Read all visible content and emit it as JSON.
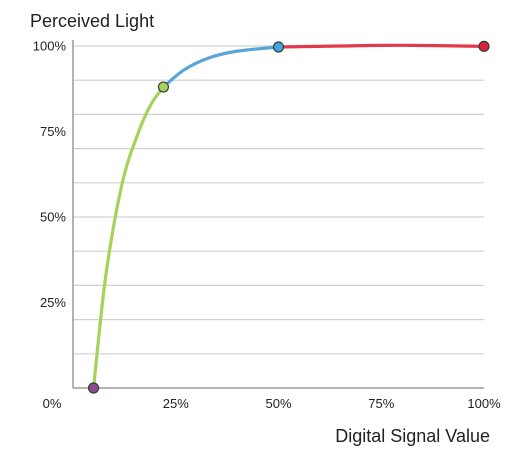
{
  "chart_data": {
    "type": "line",
    "title": "",
    "ylabel": "Perceived Light",
    "xlabel": "Digital Signal Value",
    "xlim": [
      0,
      100
    ],
    "ylim": [
      0,
      100
    ],
    "x_ticks": [
      0,
      25,
      50,
      75,
      100
    ],
    "x_tick_labels": [
      "0%",
      "25%",
      "50%",
      "75%",
      "100%"
    ],
    "y_ticks": [
      25,
      50,
      75,
      100
    ],
    "y_tick_labels": [
      "25%",
      "50%",
      "75%",
      "100%"
    ],
    "grid": true,
    "series": [
      {
        "color": "#a6d15a",
        "points": [
          [
            5,
            0
          ],
          [
            8,
            33
          ],
          [
            12,
            60
          ],
          [
            16,
            75
          ],
          [
            19,
            83
          ],
          [
            22,
            88
          ]
        ]
      },
      {
        "color": "#5aa5d8",
        "points": [
          [
            22,
            88
          ],
          [
            27,
            93
          ],
          [
            33,
            96.5
          ],
          [
            40,
            98.5
          ],
          [
            50,
            99.7
          ]
        ]
      },
      {
        "color": "#e23a4c",
        "points": [
          [
            50,
            99.7
          ],
          [
            65,
            100
          ],
          [
            80,
            100.2
          ],
          [
            100,
            99.9
          ]
        ]
      }
    ],
    "markers": [
      {
        "x": 5,
        "y": 0,
        "color": "#8e4a8f"
      },
      {
        "x": 22,
        "y": 88,
        "color": "#a6d15a"
      },
      {
        "x": 50,
        "y": 99.7,
        "color": "#3da7e0"
      },
      {
        "x": 100,
        "y": 99.9,
        "color": "#d9253a"
      }
    ],
    "grid_color": "#d0d0d0",
    "axis_color": "#9a9a9a"
  }
}
